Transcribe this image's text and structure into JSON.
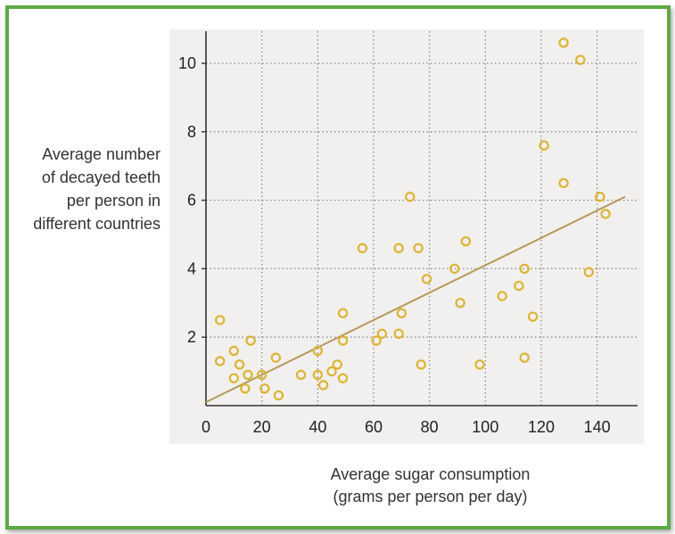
{
  "colors": {
    "frame": "#5ea946",
    "plot_background": "#f1f0ee",
    "marker": "#dcb436",
    "trend_line": "#b59a5c",
    "grid": "#8a8a8a",
    "axis": "#333333"
  },
  "chart_data": {
    "type": "scatter",
    "title": "",
    "xlabel_lines": [
      "Average sugar consumption",
      "(grams per person per day)"
    ],
    "ylabel_lines": [
      "Average number",
      "of decayed teeth",
      "per person in",
      "different countries"
    ],
    "xlim": [
      0,
      150
    ],
    "ylim": [
      0,
      11
    ],
    "x_ticks": [
      0,
      20,
      40,
      60,
      80,
      100,
      120,
      140
    ],
    "x_tick_labels": [
      "0",
      "20",
      "40",
      "60",
      "80",
      "100",
      "120",
      "140"
    ],
    "y_ticks": [
      2,
      4,
      6,
      8,
      10
    ],
    "y_tick_labels": [
      "2",
      "4",
      "6",
      "8",
      "10"
    ],
    "grid": true,
    "grid_style": "dotted",
    "marker": "hollow circle",
    "points": [
      {
        "x": 5,
        "y": 2.5
      },
      {
        "x": 5,
        "y": 1.3
      },
      {
        "x": 10,
        "y": 1.6
      },
      {
        "x": 10,
        "y": 0.8
      },
      {
        "x": 12,
        "y": 1.2
      },
      {
        "x": 14,
        "y": 0.5
      },
      {
        "x": 15,
        "y": 0.9
      },
      {
        "x": 16,
        "y": 1.9
      },
      {
        "x": 20,
        "y": 0.9
      },
      {
        "x": 21,
        "y": 0.5
      },
      {
        "x": 25,
        "y": 1.4
      },
      {
        "x": 26,
        "y": 0.3
      },
      {
        "x": 34,
        "y": 0.9
      },
      {
        "x": 40,
        "y": 1.6
      },
      {
        "x": 40,
        "y": 0.9
      },
      {
        "x": 42,
        "y": 0.6
      },
      {
        "x": 45,
        "y": 1.0
      },
      {
        "x": 47,
        "y": 1.2
      },
      {
        "x": 49,
        "y": 2.7
      },
      {
        "x": 49,
        "y": 1.9
      },
      {
        "x": 49,
        "y": 0.8
      },
      {
        "x": 56,
        "y": 4.6
      },
      {
        "x": 61,
        "y": 1.9
      },
      {
        "x": 63,
        "y": 2.1
      },
      {
        "x": 69,
        "y": 4.6
      },
      {
        "x": 69,
        "y": 2.1
      },
      {
        "x": 70,
        "y": 2.7
      },
      {
        "x": 73,
        "y": 6.1
      },
      {
        "x": 76,
        "y": 4.6
      },
      {
        "x": 77,
        "y": 1.2
      },
      {
        "x": 79,
        "y": 3.7
      },
      {
        "x": 89,
        "y": 4.0
      },
      {
        "x": 91,
        "y": 3.0
      },
      {
        "x": 93,
        "y": 4.8
      },
      {
        "x": 98,
        "y": 1.2
      },
      {
        "x": 106,
        "y": 3.2
      },
      {
        "x": 112,
        "y": 3.5
      },
      {
        "x": 114,
        "y": 4.0
      },
      {
        "x": 114,
        "y": 1.4
      },
      {
        "x": 117,
        "y": 2.6
      },
      {
        "x": 121,
        "y": 7.6
      },
      {
        "x": 128,
        "y": 10.6
      },
      {
        "x": 128,
        "y": 6.5
      },
      {
        "x": 134,
        "y": 10.1
      },
      {
        "x": 137,
        "y": 3.9
      },
      {
        "x": 141,
        "y": 6.1
      },
      {
        "x": 143,
        "y": 5.6
      }
    ],
    "trend_line": {
      "x1": 0,
      "y1": 0.1,
      "x2": 150,
      "y2": 6.1
    }
  }
}
